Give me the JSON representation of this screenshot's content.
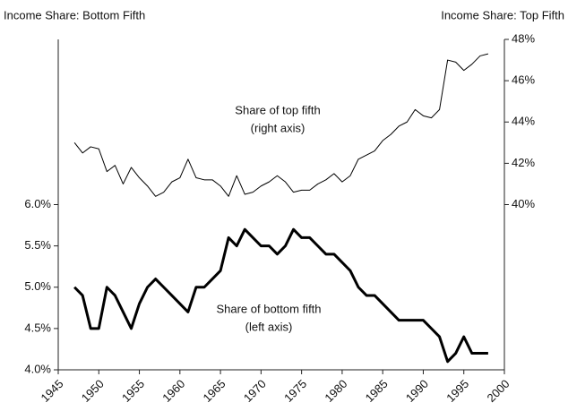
{
  "chart_data": {
    "type": "line",
    "y_axis_title": "Income Share: Bottom Fifth",
    "y2_axis_title": "Income Share: Top Fifth",
    "annotations": [
      "Share of top fifth",
      "(right axis)",
      "Share of bottom fifth",
      "(left axis)"
    ],
    "x": [
      1947,
      1948,
      1949,
      1950,
      1951,
      1952,
      1953,
      1954,
      1955,
      1956,
      1957,
      1958,
      1959,
      1960,
      1961,
      1962,
      1963,
      1964,
      1965,
      1966,
      1967,
      1968,
      1969,
      1970,
      1971,
      1972,
      1973,
      1974,
      1975,
      1976,
      1977,
      1978,
      1979,
      1980,
      1981,
      1982,
      1983,
      1984,
      1985,
      1986,
      1987,
      1988,
      1989,
      1990,
      1991,
      1992,
      1993,
      1994,
      1995,
      1996,
      1997,
      1998
    ],
    "series": [
      {
        "name": "Share of bottom fifth",
        "color": "#000000",
        "axis": "y",
        "values": [
          5.0,
          4.9,
          4.5,
          4.5,
          5.0,
          4.9,
          4.7,
          4.5,
          4.8,
          5.0,
          5.1,
          5.0,
          4.9,
          4.8,
          4.7,
          5.0,
          5.0,
          5.1,
          5.2,
          5.6,
          5.5,
          5.7,
          5.6,
          5.5,
          5.5,
          5.4,
          5.5,
          5.7,
          5.6,
          5.6,
          5.5,
          5.4,
          5.4,
          5.3,
          5.2,
          5.0,
          4.9,
          4.9,
          4.8,
          4.7,
          4.6,
          4.6,
          4.6,
          4.6,
          4.5,
          4.4,
          4.1,
          4.2,
          4.4,
          4.2,
          4.2,
          4.2
        ]
      },
      {
        "name": "Share of top fifth",
        "color": "#000000",
        "axis": "y2",
        "values": [
          43.0,
          42.5,
          42.8,
          42.7,
          41.6,
          41.9,
          41.0,
          41.8,
          41.3,
          40.9,
          40.4,
          40.6,
          41.1,
          41.3,
          42.2,
          41.3,
          41.2,
          41.2,
          40.9,
          40.4,
          41.4,
          40.5,
          40.6,
          40.9,
          41.1,
          41.4,
          41.1,
          40.6,
          40.7,
          40.7,
          41.0,
          41.2,
          41.5,
          41.1,
          41.4,
          42.2,
          42.4,
          42.6,
          43.1,
          43.4,
          43.8,
          44.0,
          44.6,
          44.3,
          44.2,
          44.6,
          47.0,
          46.9,
          46.5,
          46.8,
          47.2,
          47.3
        ]
      }
    ],
    "xlim": [
      1945,
      2000
    ],
    "xticks": [
      1945,
      1950,
      1955,
      1960,
      1965,
      1970,
      1975,
      1980,
      1985,
      1990,
      1995,
      2000
    ],
    "ylim": [
      4.0,
      8.0
    ],
    "yticks": [
      {
        "value": 4.0,
        "label": "4.0%"
      },
      {
        "value": 4.5,
        "label": "4.5%"
      },
      {
        "value": 5.0,
        "label": "5.0%"
      },
      {
        "value": 5.5,
        "label": "5.5%"
      },
      {
        "value": 6.0,
        "label": "6.0%"
      }
    ],
    "y2lim": [
      32,
      48
    ],
    "y2ticks": [
      {
        "value": 40,
        "label": "40%"
      },
      {
        "value": 42,
        "label": "42%"
      },
      {
        "value": 44,
        "label": "44%"
      },
      {
        "value": 46,
        "label": "46%"
      },
      {
        "value": 48,
        "label": "48%"
      }
    ],
    "grid": false
  }
}
